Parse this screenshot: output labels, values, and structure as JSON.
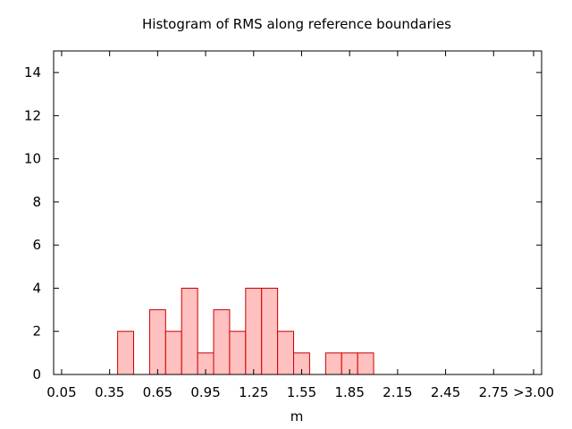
{
  "chart_data": {
    "type": "bar",
    "title": "Histogram of RMS along reference boundaries",
    "xlabel": "m",
    "ylabel": "",
    "x_tick_labels": [
      "0.05",
      "0.35",
      "0.65",
      "0.95",
      "1.25",
      "1.55",
      "1.85",
      "2.15",
      "2.45",
      "2.75",
      ">3.00"
    ],
    "x_tick_values": [
      0.05,
      0.35,
      0.65,
      0.95,
      1.25,
      1.55,
      1.85,
      2.15,
      2.45,
      2.75,
      3.0
    ],
    "y_tick_labels": [
      "0",
      "2",
      "4",
      "6",
      "8",
      "10",
      "12",
      "14"
    ],
    "y_tick_values": [
      0,
      2,
      4,
      6,
      8,
      10,
      12,
      14
    ],
    "xlim": [
      0.0,
      3.05
    ],
    "ylim": [
      0,
      15
    ],
    "bin_width": 0.1,
    "bins": [
      {
        "x": 0.45,
        "value": 2
      },
      {
        "x": 0.65,
        "value": 3
      },
      {
        "x": 0.75,
        "value": 2
      },
      {
        "x": 0.85,
        "value": 4
      },
      {
        "x": 0.95,
        "value": 1
      },
      {
        "x": 1.05,
        "value": 3
      },
      {
        "x": 1.15,
        "value": 2
      },
      {
        "x": 1.25,
        "value": 4
      },
      {
        "x": 1.35,
        "value": 4
      },
      {
        "x": 1.45,
        "value": 2
      },
      {
        "x": 1.55,
        "value": 1
      },
      {
        "x": 1.75,
        "value": 1
      },
      {
        "x": 1.85,
        "value": 1
      },
      {
        "x": 1.95,
        "value": 1
      }
    ],
    "grid": false,
    "colors": {
      "bar_fill": "#ffc0c0",
      "bar_stroke": "#cc0000",
      "axis": "#000000"
    }
  }
}
